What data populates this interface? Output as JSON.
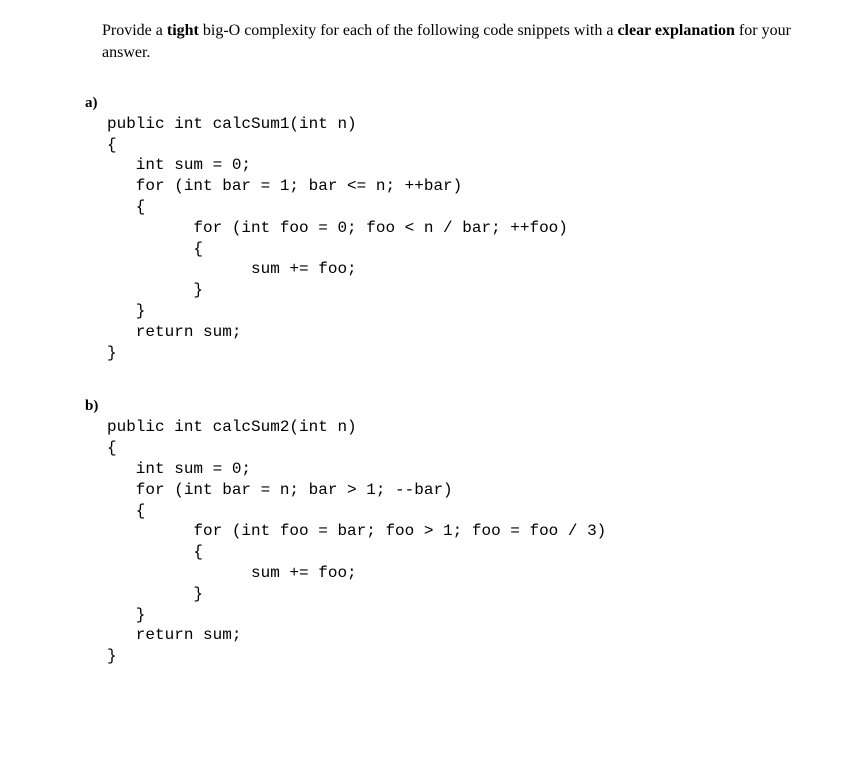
{
  "instruction": {
    "pre1": "Provide a ",
    "bold1": "tight",
    "mid1": " big-O complexity for each of the following code snippets with a ",
    "bold2": "clear explanation",
    "post": " for your answer."
  },
  "partA": {
    "label": "a)",
    "code": "public int calcSum1(int n)\n{\n   int sum = 0;\n   for (int bar = 1; bar <= n; ++bar)\n   {\n         for (int foo = 0; foo < n / bar; ++foo)\n         {\n               sum += foo;\n         }\n   }\n   return sum;\n}"
  },
  "partB": {
    "label": "b)",
    "code": "public int calcSum2(int n)\n{\n   int sum = 0;\n   for (int bar = n; bar > 1; --bar)\n   {\n         for (int foo = bar; foo > 1; foo = foo / 3)\n         {\n               sum += foo;\n         }\n   }\n   return sum;\n}"
  }
}
